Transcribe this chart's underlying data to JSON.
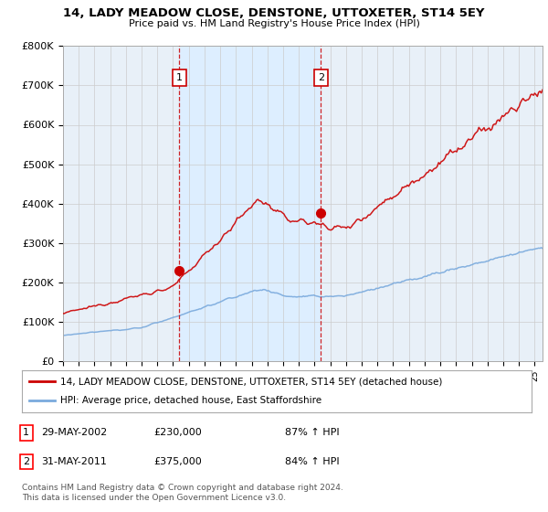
{
  "title": "14, LADY MEADOW CLOSE, DENSTONE, UTTOXETER, ST14 5EY",
  "subtitle": "Price paid vs. HM Land Registry's House Price Index (HPI)",
  "legend_line1": "14, LADY MEADOW CLOSE, DENSTONE, UTTOXETER, ST14 5EY (detached house)",
  "legend_line2": "HPI: Average price, detached house, East Staffordshire",
  "sale1_date": "29-MAY-2002",
  "sale1_price": "£230,000",
  "sale1_hpi": "87% ↑ HPI",
  "sale1_year": 2002.4,
  "sale1_value": 230000,
  "sale2_date": "31-MAY-2011",
  "sale2_price": "£375,000",
  "sale2_hpi": "84% ↑ HPI",
  "sale2_year": 2011.4,
  "sale2_value": 375000,
  "copyright": "Contains HM Land Registry data © Crown copyright and database right 2024.\nThis data is licensed under the Open Government Licence v3.0.",
  "red_color": "#cc0000",
  "blue_color": "#7aaadd",
  "shade_color": "#ddeeff",
  "vline_color": "#cc0000",
  "background_color": "#ffffff",
  "plot_bg_color": "#e8f0f8",
  "grid_color": "#cccccc",
  "ylim": [
    0,
    800000
  ],
  "xlim_start": 1995,
  "xlim_end": 2025.5
}
